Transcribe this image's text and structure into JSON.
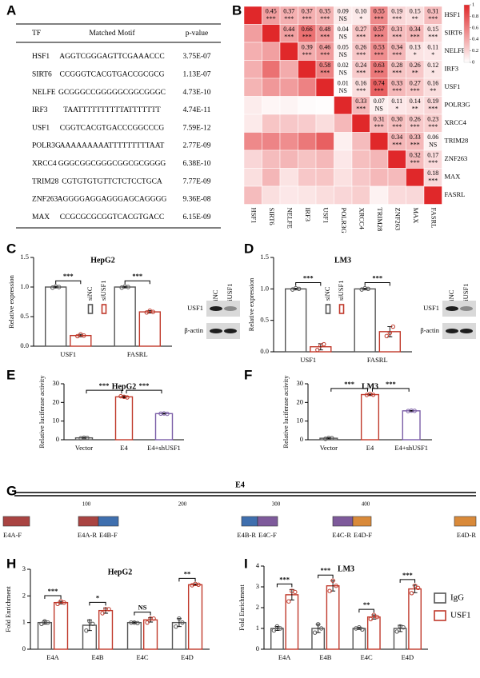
{
  "table": {
    "label": "A",
    "columns": [
      "TF",
      "Matched  Motif",
      "p-value"
    ],
    "rows": [
      [
        "HSF1",
        "AGGTCGGGAGTTCGAAACCC",
        "3.75E-07"
      ],
      [
        "SIRT6",
        "CCGGGTCACGTGACCGCGCG",
        "1.13E-07"
      ],
      [
        "NELFE",
        "GCGGGCCGGGGGCGGCGGGC",
        "4.73E-10"
      ],
      [
        "IRF3",
        "TAATTTTTTTTTTATTTTTTT",
        "4.74E-11"
      ],
      [
        "USF1",
        "CGGTCACGTGACCCGGCCCG",
        "7.59E-12"
      ],
      [
        "POLR3G",
        "AAAAAAAAATTTTTTTTTAAT",
        "2.77E-09"
      ],
      [
        "XRCC4",
        "GGGCGGCGGGCGGCGCGGGG",
        "6.38E-10"
      ],
      [
        "TRIM28",
        "CGTGTGTGTTCTCTCCTGCA",
        "7.77E-09"
      ],
      [
        "ZNF263",
        "AGGGGAGGAGGGAGCAGGGG",
        "9.36E-08"
      ],
      [
        "MAX",
        "CCGCGCGCGGTCACGTGACC",
        "6.15E-09"
      ]
    ]
  },
  "chart_data": [
    {
      "type": "heatmap",
      "label": "B",
      "rows": [
        "HSF1",
        "SIRT6",
        "NELFE",
        "IRF3",
        "USF1",
        "POLR3G",
        "XRCC4",
        "TRIM28",
        "ZNF263",
        "MAX",
        "FASRL"
      ],
      "values": [
        [
          1,
          0.45,
          0.37,
          0.37,
          0.35,
          0.09,
          0.1,
          0.55,
          0.19,
          0.15,
          0.31
        ],
        [
          null,
          1,
          0.44,
          0.66,
          0.48,
          0.04,
          0.27,
          0.57,
          0.31,
          0.34,
          0.15
        ],
        [
          null,
          null,
          1,
          0.39,
          0.46,
          0.05,
          0.26,
          0.53,
          0.34,
          0.13,
          0.11
        ],
        [
          null,
          null,
          null,
          1,
          0.58,
          0.02,
          0.24,
          0.63,
          0.28,
          0.26,
          0.12
        ],
        [
          null,
          null,
          null,
          null,
          1,
          0.01,
          0.16,
          0.74,
          0.33,
          0.27,
          0.16
        ],
        [
          null,
          null,
          null,
          null,
          null,
          1,
          0.33,
          0.07,
          0.11,
          0.14,
          0.19
        ],
        [
          null,
          null,
          null,
          null,
          null,
          null,
          1,
          0.31,
          0.3,
          0.26,
          0.23
        ],
        [
          null,
          null,
          null,
          null,
          null,
          null,
          null,
          1,
          0.34,
          0.33,
          0.06
        ],
        [
          null,
          null,
          null,
          null,
          null,
          null,
          null,
          null,
          1,
          0.32,
          0.17
        ],
        [
          null,
          null,
          null,
          null,
          null,
          null,
          null,
          null,
          null,
          1,
          0.18
        ],
        [
          null,
          null,
          null,
          null,
          null,
          null,
          null,
          null,
          null,
          null,
          1
        ]
      ],
      "value_labels": [
        [
          null,
          "0.45",
          "0.37",
          "0.37",
          "0.35",
          "0.09",
          "0.10",
          "0.55",
          "0.19",
          "0.15",
          "0.31"
        ],
        [
          null,
          null,
          "0.44",
          "0.66",
          "0.48",
          "0.04",
          "0.27",
          "0.57",
          "0.31",
          "0.34",
          "0.15"
        ],
        [
          null,
          null,
          null,
          "0.39",
          "0.46",
          "0.05",
          "0.26",
          "0.53",
          "0.34",
          "0.13",
          "0.11"
        ],
        [
          null,
          null,
          null,
          null,
          "0.58",
          "0.02",
          "0.24",
          "0.63",
          "0.28",
          "0.26",
          "0.12"
        ],
        [
          null,
          null,
          null,
          null,
          null,
          "0.01",
          "0.16",
          "0.74",
          "0.33",
          "0.27",
          "0.16"
        ],
        [
          null,
          null,
          null,
          null,
          null,
          null,
          "0.33",
          "0.07",
          "0.11",
          "0.14",
          "0.19"
        ],
        [
          null,
          null,
          null,
          null,
          null,
          null,
          null,
          "0.31",
          "0.30",
          "0.26",
          "0.23"
        ],
        [
          null,
          null,
          null,
          null,
          null,
          null,
          null,
          null,
          "0.34",
          "0.33",
          "0.06"
        ],
        [
          null,
          null,
          null,
          null,
          null,
          null,
          null,
          null,
          null,
          "0.32",
          "0.17"
        ],
        [
          null,
          null,
          null,
          null,
          null,
          null,
          null,
          null,
          null,
          null,
          "0.18"
        ],
        [
          null,
          null,
          null,
          null,
          null,
          null,
          null,
          null,
          null,
          null,
          null
        ]
      ],
      "stars": [
        [
          null,
          "***",
          "***",
          "***",
          "***",
          "NS",
          "*",
          "***",
          "***",
          "**",
          "***"
        ],
        [
          null,
          null,
          "***",
          "***",
          "***",
          "NS",
          "***",
          "***",
          "***",
          "***",
          "***"
        ],
        [
          null,
          null,
          null,
          "***",
          "***",
          "NS",
          "***",
          "***",
          "***",
          "*",
          "*"
        ],
        [
          null,
          null,
          null,
          null,
          "***",
          "NS",
          "***",
          "***",
          "***",
          "**",
          "*"
        ],
        [
          null,
          null,
          null,
          null,
          null,
          "NS",
          "***",
          "***",
          "***",
          "***",
          "**"
        ],
        [
          null,
          null,
          null,
          null,
          null,
          null,
          "***",
          "NS",
          "*",
          "**",
          "***"
        ],
        [
          null,
          null,
          null,
          null,
          null,
          null,
          null,
          "***",
          "***",
          "***",
          "***"
        ],
        [
          null,
          null,
          null,
          null,
          null,
          null,
          null,
          null,
          "***",
          "***",
          "NS"
        ],
        [
          null,
          null,
          null,
          null,
          null,
          null,
          null,
          null,
          null,
          "***",
          "***"
        ],
        [
          null,
          null,
          null,
          null,
          null,
          null,
          null,
          null,
          null,
          null,
          "***"
        ],
        [
          null,
          null,
          null,
          null,
          null,
          null,
          null,
          null,
          null,
          null,
          null
        ]
      ],
      "colorbar_lim": [
        0,
        1
      ],
      "colorbar_ticks": [
        0,
        0.2,
        0.4,
        0.6,
        0.8,
        1
      ],
      "color_low": "#ffffff",
      "color_high": "#e0282a"
    },
    {
      "type": "bar",
      "label": "C",
      "title": "HepG2",
      "ylabel": "Relative expression",
      "categories": [
        "USF1",
        "FASRL"
      ],
      "series": [
        {
          "name": "siNC",
          "color": "#555555",
          "values": [
            1,
            1
          ],
          "errors": [
            0.01,
            0.01
          ],
          "points": [
            [
              0.99,
              1.01,
              1.0
            ],
            [
              0.99,
              1.01,
              1.0
            ]
          ]
        },
        {
          "name": "siUSF1",
          "color": "#c0392b",
          "values": [
            0.18,
            0.58
          ],
          "errors": [
            0.02,
            0.02
          ],
          "points": [
            [
              0.17,
              0.2,
              0.18
            ],
            [
              0.57,
              0.6,
              0.58
            ]
          ]
        }
      ],
      "significance": [
        "***",
        "***"
      ],
      "ylim": [
        0,
        1.5
      ],
      "yticks": [
        {
          "value": 0,
          "label": "0.0"
        },
        {
          "value": 0.5,
          "label": "0.5"
        },
        {
          "value": 1,
          "label": "1.0"
        },
        {
          "value": 1.5,
          "label": "1.5"
        }
      ],
      "legend": "top",
      "blot": {
        "lanes": [
          "siNC",
          "siUSF1"
        ],
        "proteins": [
          "USF1",
          "β-actin"
        ]
      }
    },
    {
      "type": "bar",
      "label": "D",
      "title": "LM3",
      "ylabel": "Relative expression",
      "categories": [
        "USF1",
        "FASRL"
      ],
      "series": [
        {
          "name": "siNC",
          "color": "#555555",
          "values": [
            1,
            1
          ],
          "errors": [
            0.01,
            0.01
          ],
          "points": [
            [
              0.99,
              1.01,
              1.0
            ],
            [
              0.99,
              1.01,
              1.0
            ]
          ]
        },
        {
          "name": "siUSF1",
          "color": "#c0392b",
          "values": [
            0.08,
            0.32
          ],
          "errors": [
            0.05,
            0.08
          ],
          "points": [
            [
              0.03,
              0.1,
              0.12
            ],
            [
              0.25,
              0.3,
              0.4
            ]
          ]
        }
      ],
      "significance": [
        "***",
        "***"
      ],
      "ylim": [
        0,
        1.5
      ],
      "yticks": [
        {
          "value": 0,
          "label": "0.0"
        },
        {
          "value": 0.5,
          "label": "0.5"
        },
        {
          "value": 1,
          "label": "1.0"
        },
        {
          "value": 1.5,
          "label": "1.5"
        }
      ],
      "legend": "top",
      "blot": {
        "lanes": [
          "siNC",
          "siUSF1"
        ],
        "proteins": [
          "USF1",
          "β-actin"
        ]
      }
    },
    {
      "type": "bar",
      "label": "E",
      "title": "HepG2",
      "ylabel": "Relative luciferase activity",
      "categories": [
        "Vector",
        "E4",
        "E4+shUSF1"
      ],
      "values": [
        1,
        23,
        14
      ],
      "colors": [
        "#555555",
        "#c0392b",
        "#7b5ea7"
      ],
      "errors": [
        0.2,
        0.5,
        0.2
      ],
      "points": [
        [
          0.8,
          1.1,
          1.0
        ],
        [
          23.3,
          23.0,
          22.7
        ],
        [
          14.0,
          14.1,
          13.9
        ]
      ],
      "significance": [
        "***",
        "***"
      ],
      "ylim": [
        0,
        30
      ],
      "yticks": [
        0,
        10,
        20,
        30
      ]
    },
    {
      "type": "bar",
      "label": "F",
      "title": "LM3",
      "ylabel": "Relative luciferase activity",
      "categories": [
        "Vector",
        "E4",
        "E4+shUSF1"
      ],
      "values": [
        0.8,
        24.2,
        15.5
      ],
      "colors": [
        "#555555",
        "#c0392b",
        "#7b5ea7"
      ],
      "errors": [
        0.3,
        0.3,
        0.2
      ],
      "points": [
        [
          0.5,
          1.0,
          0.9
        ],
        [
          24.0,
          24.5,
          24.1
        ],
        [
          15.4,
          15.6,
          15.5
        ]
      ],
      "significance": [
        "***",
        "***"
      ],
      "ylim": [
        0,
        30
      ],
      "yticks": [
        0,
        10,
        20,
        30
      ]
    },
    {
      "type": "bar",
      "label": "H",
      "title": "HepG2",
      "ylabel": "Fold Enrichment",
      "categories": [
        "E4A",
        "E4B",
        "E4C",
        "E4D"
      ],
      "series": [
        {
          "color": "#555555",
          "values": [
            1.0,
            0.9,
            1.0,
            1.0
          ],
          "errors": [
            0.06,
            0.2,
            0.02,
            0.15
          ],
          "points": [
            [
              0.95,
              1.05,
              1.0
            ],
            [
              0.7,
              1.05,
              0.95
            ],
            [
              1.0,
              1.0,
              0.98
            ],
            [
              0.85,
              1.15,
              1.0
            ]
          ]
        },
        {
          "color": "#c0392b",
          "values": [
            1.75,
            1.45,
            1.1,
            2.42
          ],
          "errors": [
            0.05,
            0.1,
            0.08,
            0.03
          ],
          "points": [
            [
              1.7,
              1.8,
              1.75
            ],
            [
              1.35,
              1.5,
              1.5
            ],
            [
              1.0,
              1.15,
              1.15
            ],
            [
              2.4,
              2.45,
              2.42
            ]
          ]
        }
      ],
      "significance": [
        "***",
        "*",
        "NS",
        "**"
      ],
      "ylim": [
        0,
        3
      ],
      "yticks": [
        0,
        1,
        2,
        3
      ]
    },
    {
      "type": "bar",
      "label": "I",
      "title": "LM3",
      "ylabel": "Fold Enrichment",
      "categories": [
        "E4A",
        "E4B",
        "E4C",
        "E4D"
      ],
      "series": [
        {
          "name": "IgG",
          "color": "#555555",
          "values": [
            1.0,
            1.0,
            1.0,
            1.0
          ],
          "errors": [
            0.1,
            0.2,
            0.05,
            0.15
          ],
          "points": [
            [
              0.9,
              1.1,
              1.0
            ],
            [
              0.8,
              1.2,
              1.0
            ],
            [
              1.0,
              1.05,
              0.95
            ],
            [
              0.85,
              1.1,
              1.05
            ]
          ]
        },
        {
          "name": "USF1",
          "color": "#c0392b",
          "values": [
            2.62,
            3.05,
            1.55,
            2.9
          ],
          "errors": [
            0.25,
            0.25,
            0.1,
            0.18
          ],
          "points": [
            [
              2.3,
              2.8,
              2.75
            ],
            [
              2.8,
              3.3,
              3.05
            ],
            [
              1.45,
              1.65,
              1.55
            ],
            [
              2.7,
              3.05,
              2.95
            ]
          ]
        }
      ],
      "significance": [
        "***",
        "***",
        "**",
        "***"
      ],
      "ylim": [
        0,
        4
      ],
      "yticks": [
        0,
        1,
        2,
        3,
        4
      ],
      "legend": "right"
    }
  ],
  "diagram": {
    "label": "G",
    "title": "E4",
    "ruler_ticks": [
      100,
      200,
      300,
      400
    ],
    "primers": [
      "E4A-F",
      "E4A-R",
      "E4B-F",
      "E4B-R",
      "E4C-F",
      "E4C-R",
      "E4D-F",
      "E4D-R"
    ]
  }
}
